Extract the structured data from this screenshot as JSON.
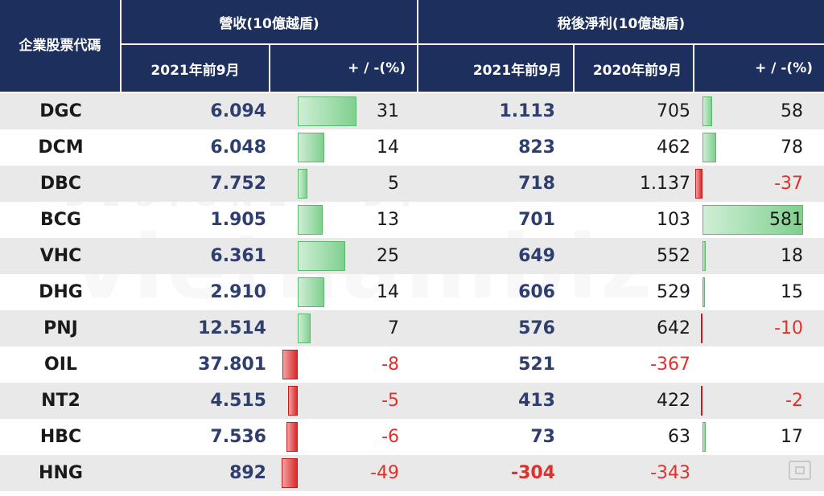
{
  "header": {
    "code_col": "企業股票代碼",
    "revenue_group": "營收(10億越盾)",
    "profit_group": "稅後淨利(10億越盾)",
    "rev_2021": "2021年前9月",
    "rev_change": "+ / -(%)",
    "profit_2021": "2021年前9月",
    "profit_2020": "2020年前9月",
    "profit_change": "+ / -(%)"
  },
  "watermark": {
    "small": "DESIGNED BY",
    "big": "vietnambiz"
  },
  "colors": {
    "header_bg": "#1d2f5c",
    "positive_bar": "#7fd08e",
    "negative_bar": "#d82a2a",
    "negative_text": "#e0302a",
    "blue_value": "#2e3e6e"
  },
  "rows": [
    {
      "code": "DGC",
      "rev_2021": "6.094",
      "rev_change": "31",
      "rev_change_value": 31,
      "profit_2021": "1.113",
      "profit_2020": "705",
      "profit_change": "58",
      "profit_change_value": 58
    },
    {
      "code": "DCM",
      "rev_2021": "6.048",
      "rev_change": "14",
      "rev_change_value": 14,
      "profit_2021": "823",
      "profit_2020": "462",
      "profit_change": "78",
      "profit_change_value": 78
    },
    {
      "code": "DBC",
      "rev_2021": "7.752",
      "rev_change": "5",
      "rev_change_value": 5,
      "profit_2021": "718",
      "profit_2020": "1.137",
      "profit_change": "-37",
      "profit_change_value": -37
    },
    {
      "code": "BCG",
      "rev_2021": "1.905",
      "rev_change": "13",
      "rev_change_value": 13,
      "profit_2021": "701",
      "profit_2020": "103",
      "profit_change": "581",
      "profit_change_value": 581
    },
    {
      "code": "VHC",
      "rev_2021": "6.361",
      "rev_change": "25",
      "rev_change_value": 25,
      "profit_2021": "649",
      "profit_2020": "552",
      "profit_change": "18",
      "profit_change_value": 18
    },
    {
      "code": "DHG",
      "rev_2021": "2.910",
      "rev_change": "14",
      "rev_change_value": 14,
      "profit_2021": "606",
      "profit_2020": "529",
      "profit_change": "15",
      "profit_change_value": 15
    },
    {
      "code": "PNJ",
      "rev_2021": "12.514",
      "rev_change": "7",
      "rev_change_value": 7,
      "profit_2021": "576",
      "profit_2020": "642",
      "profit_change": "-10",
      "profit_change_value": -10
    },
    {
      "code": "OIL",
      "rev_2021": "37.801",
      "rev_change": "-8",
      "rev_change_value": -8,
      "profit_2021": "521",
      "profit_2020": "-367",
      "profit_change": "",
      "profit_change_value": null
    },
    {
      "code": "NT2",
      "rev_2021": "4.515",
      "rev_change": "-5",
      "rev_change_value": -5,
      "profit_2021": "413",
      "profit_2020": "422",
      "profit_change": "-2",
      "profit_change_value": -2
    },
    {
      "code": "HBC",
      "rev_2021": "7.536",
      "rev_change": "-6",
      "rev_change_value": -6,
      "profit_2021": "73",
      "profit_2020": "63",
      "profit_change": "17",
      "profit_change_value": 17
    },
    {
      "code": "HNG",
      "rev_2021": "892",
      "rev_change": "-49",
      "rev_change_value": -49,
      "profit_2021": "-304",
      "profit_2020": "-343",
      "profit_change": "",
      "profit_change_value": null
    }
  ]
}
